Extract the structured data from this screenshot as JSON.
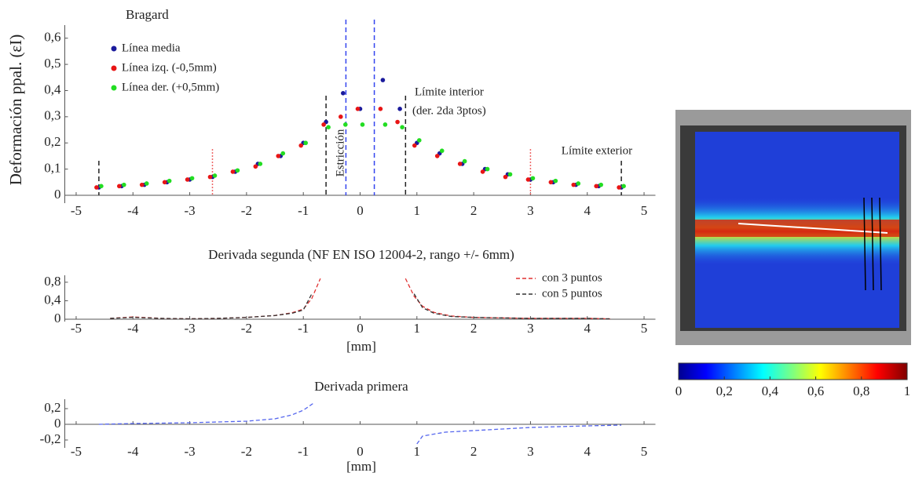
{
  "chart_data": [
    {
      "type": "scatter",
      "title": "Bragard",
      "ylabel": "Deformación ppal. (εI)",
      "annotations": [
        "Límite interior",
        "(der. 2da 3ptos)",
        "Límite exterior",
        "Estricción"
      ],
      "x": [
        -4.6,
        -4.2,
        -3.8,
        -3.4,
        -3.0,
        -2.6,
        -2.2,
        -1.8,
        -1.4,
        -1.0,
        -0.6,
        -0.3,
        0,
        0.4,
        0.7,
        1.0,
        1.4,
        1.8,
        2.2,
        2.6,
        3.0,
        3.4,
        3.8,
        4.2,
        4.6
      ],
      "series": [
        {
          "name": "Línea media",
          "color": "#1a1a9c",
          "values": [
            0.03,
            0.035,
            0.04,
            0.05,
            0.06,
            0.07,
            0.09,
            0.12,
            0.15,
            0.2,
            0.28,
            0.39,
            0.33,
            0.44,
            0.33,
            0.2,
            0.16,
            0.12,
            0.1,
            0.08,
            0.06,
            0.05,
            0.04,
            0.035,
            0.03
          ]
        },
        {
          "name": "Línea izq. (-0,5mm)",
          "color": "#e81515",
          "values": [
            0.03,
            0.035,
            0.04,
            0.05,
            0.06,
            0.07,
            0.09,
            0.11,
            0.15,
            0.19,
            0.27,
            0.3,
            0.33,
            0.33,
            0.28,
            0.19,
            0.15,
            0.12,
            0.09,
            0.07,
            0.06,
            0.05,
            0.04,
            0.035,
            0.03
          ]
        },
        {
          "name": "Línea der. (+0,5mm)",
          "color": "#22dd22",
          "values": [
            0.035,
            0.04,
            0.045,
            0.055,
            0.065,
            0.075,
            0.095,
            0.12,
            0.16,
            0.2,
            0.26,
            0.27,
            0.27,
            0.27,
            0.26,
            0.21,
            0.17,
            0.13,
            0.1,
            0.08,
            0.065,
            0.055,
            0.045,
            0.04,
            0.035
          ]
        }
      ],
      "vlines": [
        {
          "x": -4.6,
          "color": "#222222"
        },
        {
          "x": -0.6,
          "color": "#222222"
        },
        {
          "x": 0.8,
          "color": "#222222"
        },
        {
          "x": 4.6,
          "color": "#222222"
        },
        {
          "x": -0.25,
          "color": "#3344ee"
        },
        {
          "x": 0.25,
          "color": "#3344ee"
        },
        {
          "x": -2.6,
          "color": "#ee6666"
        },
        {
          "x": 3.0,
          "color": "#ee6666"
        }
      ],
      "xlim": [
        -5.2,
        5.2
      ],
      "xticks": [
        -5,
        -4,
        -3,
        -2,
        -1,
        0,
        1,
        2,
        3,
        4,
        5
      ],
      "ylim": [
        -0.03,
        0.65
      ],
      "yticks": [
        0,
        {
          "value": 0.1,
          "label": "0,1"
        },
        {
          "value": 0.2,
          "label": "0,2"
        },
        {
          "value": 0.3,
          "label": "0,3"
        },
        {
          "value": 0.4,
          "label": "0,4"
        },
        {
          "value": 0.5,
          "label": "0,5"
        },
        {
          "value": 0.6,
          "label": "0,6"
        }
      ]
    },
    {
      "type": "line",
      "title": "Derivada segunda (NF EN ISO 12004-2, rango +/- 6mm)",
      "xlabel": "[mm]",
      "linestyle": "dashed",
      "x": [
        -4.4,
        -4,
        -3.5,
        -3,
        -2.5,
        -2,
        -1.5,
        -1.2,
        -1,
        -0.85,
        -0.7,
        0,
        0.8,
        0.95,
        1.1,
        1.3,
        1.6,
        2,
        2.5,
        3,
        3.5,
        4,
        4.4
      ],
      "series": [
        {
          "name": "con 3 puntos",
          "color": "#e03030",
          "values": [
            0.02,
            0.05,
            0.02,
            0.01,
            0.02,
            0.04,
            0.08,
            0.14,
            0.22,
            0.45,
            0.88,
            null,
            0.88,
            0.5,
            0.28,
            0.15,
            0.07,
            0.04,
            0.03,
            0.02,
            0.02,
            0.02,
            0.01
          ]
        },
        {
          "name": "con 5 puntos",
          "color": "#333333",
          "values": [
            0.02,
            0.04,
            0.02,
            0.01,
            0.02,
            0.04,
            0.08,
            0.13,
            0.2,
            0.55,
            null,
            null,
            null,
            0.55,
            0.25,
            0.13,
            0.06,
            0.04,
            0.03,
            0.02,
            0.02,
            0.02,
            0.01
          ]
        }
      ],
      "xlim": [
        -5.2,
        5.2
      ],
      "xticks": [
        -5,
        -4,
        -3,
        -2,
        -1,
        0,
        1,
        2,
        3,
        4,
        5
      ],
      "ylim": [
        -0.05,
        0.95
      ],
      "yticks": [
        0,
        {
          "value": 0.4,
          "label": "0,4"
        },
        {
          "value": 0.8,
          "label": "0,8"
        }
      ]
    },
    {
      "type": "line",
      "title": "Derivada primera",
      "xlabel": "[mm]",
      "linestyle": "dashed",
      "x": [
        -4.6,
        -4,
        -3,
        -2,
        -1.5,
        -1.2,
        -1,
        -0.8,
        0,
        1.0,
        1.1,
        1.5,
        2,
        3,
        4,
        4.6
      ],
      "series": [
        {
          "name": null,
          "color": "#5566ee",
          "values": [
            0,
            0.01,
            0.02,
            0.04,
            0.07,
            0.12,
            0.18,
            0.28,
            null,
            -0.25,
            -0.15,
            -0.1,
            -0.08,
            -0.04,
            -0.02,
            -0.01
          ]
        }
      ],
      "xlim": [
        -5.2,
        5.2
      ],
      "xticks": [
        -5,
        -4,
        -3,
        -2,
        -1,
        0,
        1,
        2,
        3,
        4,
        5
      ],
      "ylim": [
        -0.3,
        0.32
      ],
      "yticks": [
        {
          "value": -0.2,
          "label": "-0,2"
        },
        0,
        {
          "value": 0.2,
          "label": "0,2"
        }
      ]
    },
    {
      "type": "colorbar",
      "xlim": [
        0,
        1
      ],
      "xticks": [
        0,
        {
          "value": 0.2,
          "label": "0,2"
        },
        {
          "value": 0.4,
          "label": "0,4"
        },
        {
          "value": 0.6,
          "label": "0,6"
        },
        {
          "value": 0.8,
          "label": "0,8"
        },
        1
      ]
    }
  ]
}
